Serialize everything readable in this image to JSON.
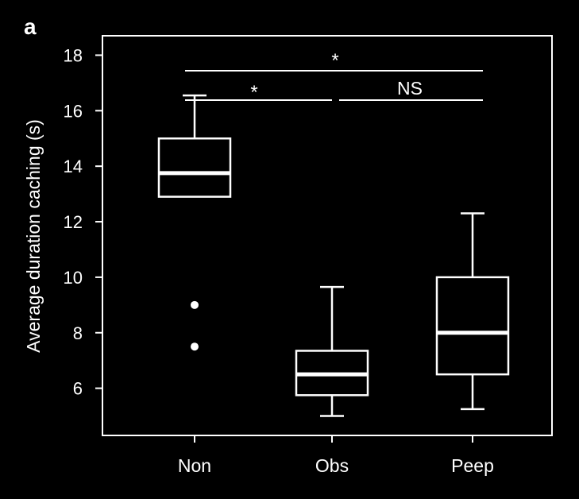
{
  "panel_label": "a",
  "chart_data": {
    "type": "box",
    "title": "",
    "xlabel": "",
    "ylabel": "Average duration caching (s)",
    "ylim": [
      4.3,
      18.7
    ],
    "yticks": [
      6,
      8,
      10,
      12,
      14,
      16,
      18
    ],
    "ytick_labels": [
      "6",
      "8",
      "10",
      "12",
      "14",
      "16",
      "18"
    ],
    "categories": [
      "Non",
      "Obs",
      "Peep"
    ],
    "boxes": [
      {
        "category": "Non",
        "whisker_low": 12.9,
        "q1": 12.9,
        "median": 13.75,
        "q3": 15.0,
        "whisker_high": 16.55,
        "outliers": [
          9.0,
          7.5
        ]
      },
      {
        "category": "Obs",
        "whisker_low": 5.0,
        "q1": 5.75,
        "median": 6.5,
        "q3": 7.35,
        "whisker_high": 9.65,
        "outliers": []
      },
      {
        "category": "Peep",
        "whisker_low": 5.25,
        "q1": 6.5,
        "median": 8.0,
        "q3": 10.0,
        "whisker_high": 12.3,
        "outliers": []
      }
    ],
    "significance": [
      {
        "from": "Non",
        "to": "Peep",
        "label": "*"
      },
      {
        "from": "Non",
        "to": "Obs",
        "label": "*"
      },
      {
        "from": "Obs",
        "to": "Peep",
        "label": "NS"
      }
    ],
    "grid": false,
    "colors": {
      "background": "#000000",
      "foreground": "#ffffff"
    }
  }
}
